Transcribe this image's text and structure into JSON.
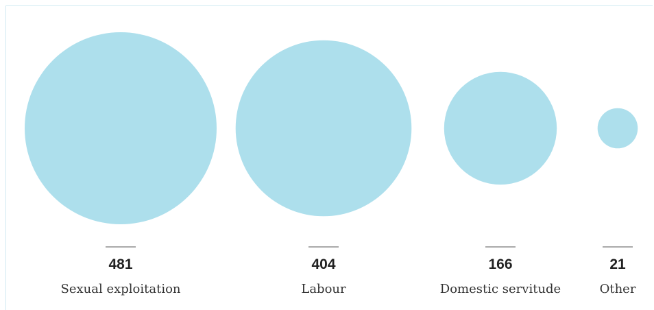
{
  "chart_data": {
    "type": "bubble",
    "title": "",
    "categories": [
      "Sexual exploitation",
      "Labour",
      "Domestic servitude",
      "Other"
    ],
    "values": [
      481,
      404,
      166,
      21
    ],
    "colors": {
      "bubble": "#addfec",
      "rule": "#555555",
      "value_text": "#222222",
      "label_text": "#333333",
      "frame": "#cfe9f1"
    },
    "size_encoding": "area proportional to value",
    "legend": "none",
    "grid": false
  }
}
